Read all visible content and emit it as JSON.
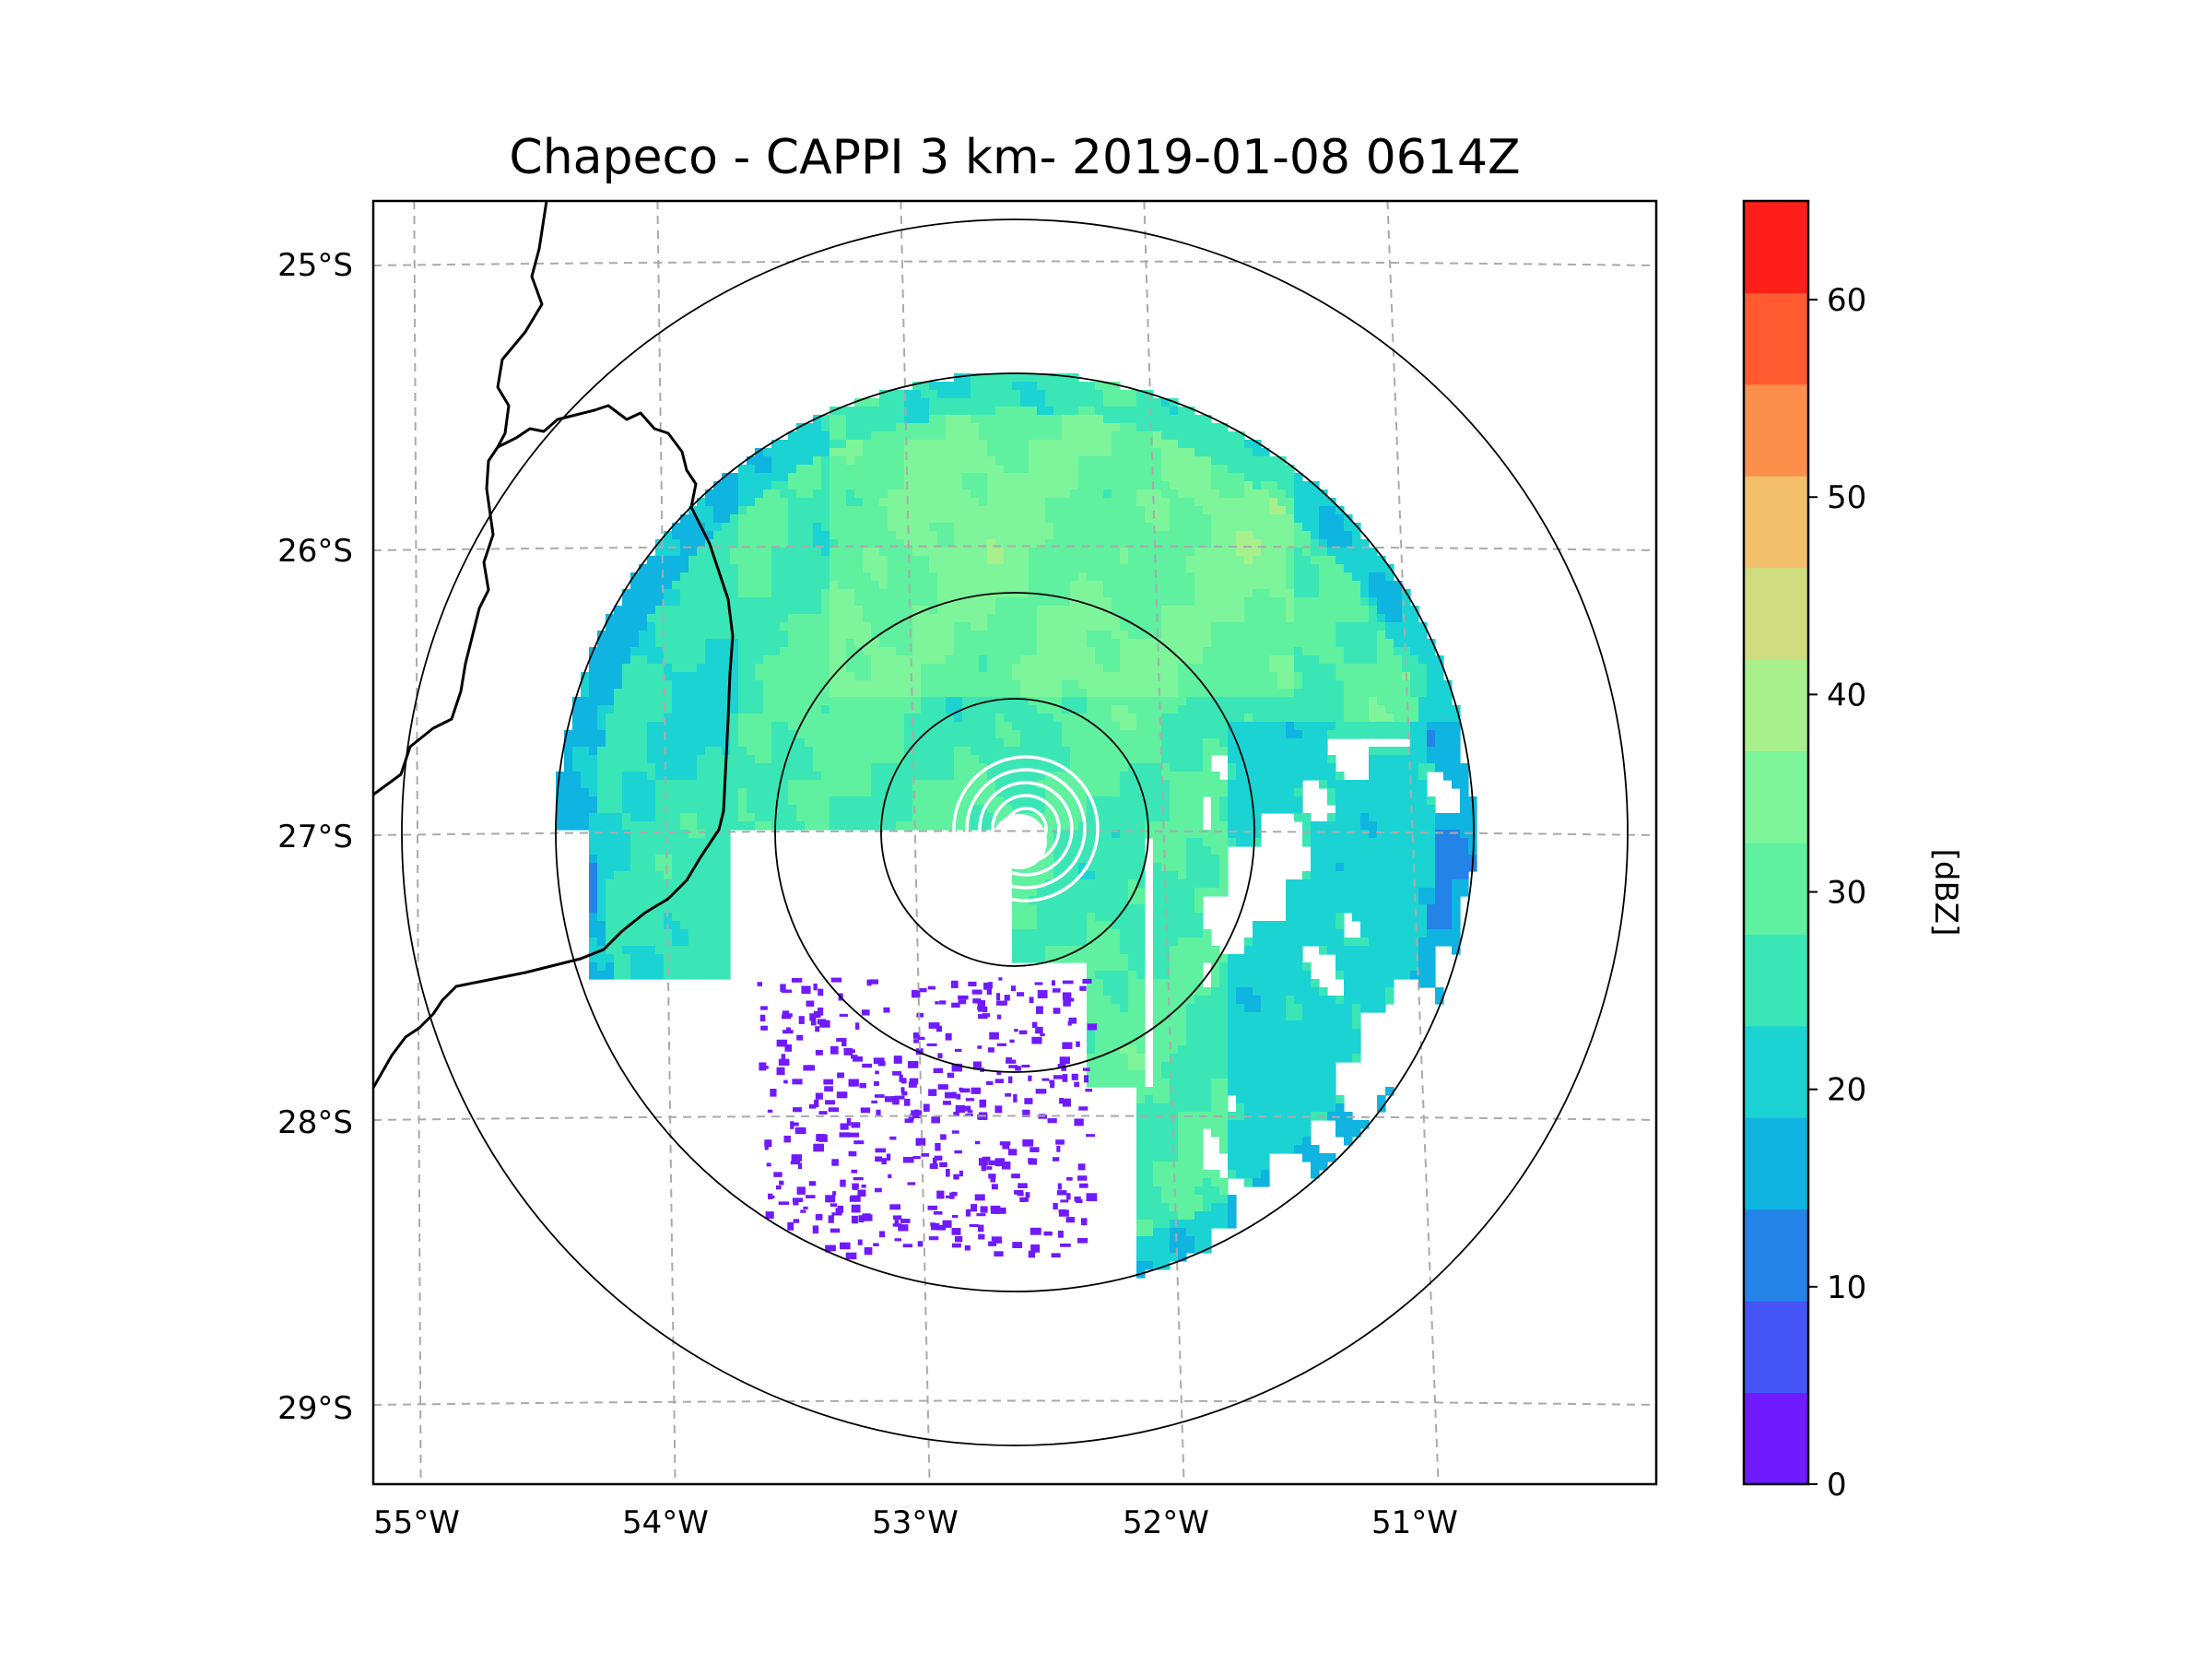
{
  "title": "Chapeco - CAPPI 3 km- 2019-01-08 0614Z",
  "map": {
    "lat_ticks": [
      "25°S",
      "26°S",
      "27°S",
      "28°S",
      "29°S"
    ],
    "lon_ticks": [
      "55°W",
      "54°W",
      "53°W",
      "52°W",
      "51°W"
    ],
    "gridlines": true,
    "gridline_style": "dashed",
    "range_rings": 4,
    "center_label": "",
    "border_color": "#000000"
  },
  "colorbar": {
    "label": "[dBZ]",
    "min": 0,
    "max": 65,
    "step": 5,
    "tick_values": [
      0,
      10,
      20,
      30,
      40,
      50,
      60
    ],
    "colors": [
      "#6f1aff",
      "#4555f5",
      "#2383e6",
      "#0fb4e0",
      "#1bd3d3",
      "#3ae6b5",
      "#5ff0a0",
      "#7ef59a",
      "#a8f08c",
      "#d0dc80",
      "#f2c06c",
      "#fd8f4d",
      "#ff5a30",
      "#ff1f19"
    ],
    "placement": "right"
  },
  "chart_data": {
    "type": "heatmap",
    "title": "Chapeco - CAPPI 3 km- 2019-01-08 0614Z",
    "xlabel": "",
    "ylabel": "",
    "xlim_lon": [
      -55.2,
      -50.1
    ],
    "ylim_lat": [
      -29.3,
      -24.8
    ],
    "colorbar_label": "[dBZ]",
    "colorbar_range": [
      0,
      65
    ],
    "radar_center": {
      "lon": -52.6,
      "lat": -27.0
    }
  }
}
